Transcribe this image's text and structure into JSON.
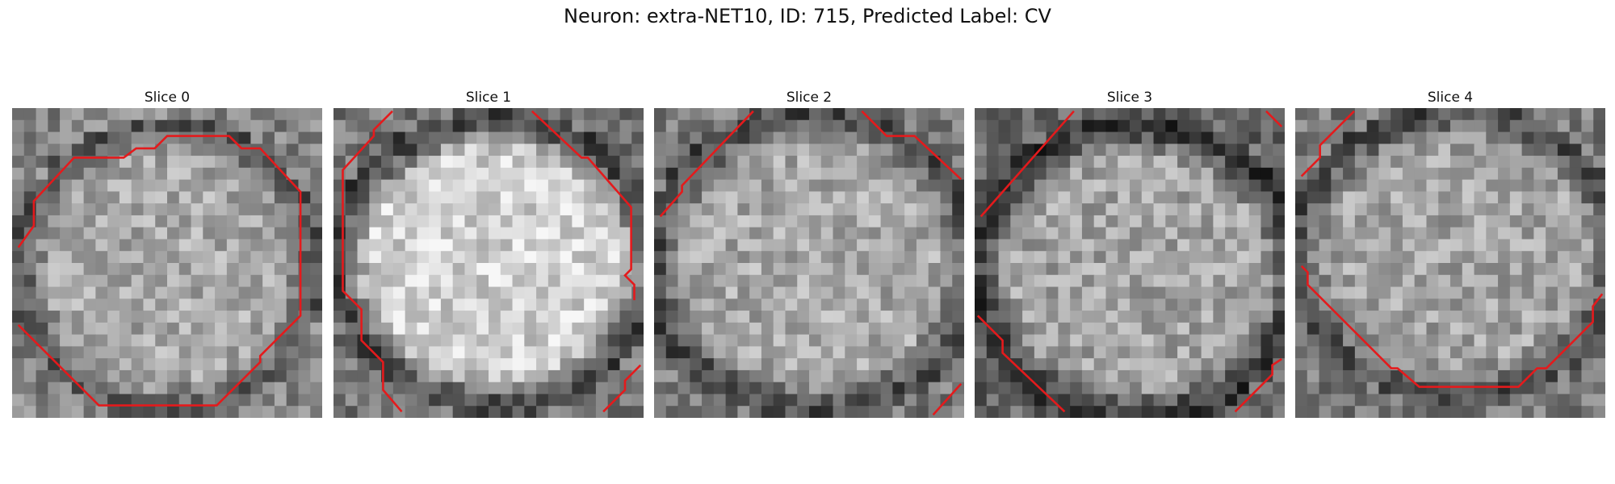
{
  "figure": {
    "title": "Neuron: extra-NET10, ID: 715, Predicted Label: CV"
  },
  "slices": [
    {
      "label": "Slice 0",
      "seed": 11,
      "center_brightness": 0.66,
      "edge_brightness": 0.34,
      "ellipse_rx": 0.46,
      "ellipse_ry": 0.44,
      "ellipse_cx": 0.5,
      "ellipse_cy": 0.52
    },
    {
      "label": "Slice 1",
      "seed": 23,
      "center_brightness": 0.82,
      "edge_brightness": 0.28,
      "ellipse_rx": 0.49,
      "ellipse_ry": 0.44,
      "ellipse_cx": 0.52,
      "ellipse_cy": 0.5
    },
    {
      "label": "Slice 2",
      "seed": 37,
      "center_brightness": 0.66,
      "edge_brightness": 0.3,
      "ellipse_rx": 0.5,
      "ellipse_ry": 0.46,
      "ellipse_cx": 0.52,
      "ellipse_cy": 0.5
    },
    {
      "label": "Slice 3",
      "seed": 41,
      "center_brightness": 0.64,
      "edge_brightness": 0.22,
      "ellipse_rx": 0.5,
      "ellipse_ry": 0.45,
      "ellipse_cx": 0.52,
      "ellipse_cy": 0.53
    },
    {
      "label": "Slice 4",
      "seed": 53,
      "center_brightness": 0.64,
      "edge_brightness": 0.3,
      "ellipse_rx": 0.5,
      "ellipse_ry": 0.44,
      "ellipse_cx": 0.52,
      "ellipse_cy": 0.47
    }
  ],
  "overlay_color": "#e41a1c",
  "contours": [
    [
      [
        [
          0.02,
          0.45
        ],
        [
          0.07,
          0.38
        ],
        [
          0.07,
          0.3
        ],
        [
          0.2,
          0.16
        ],
        [
          0.36,
          0.16
        ],
        [
          0.4,
          0.13
        ],
        [
          0.46,
          0.13
        ],
        [
          0.5,
          0.09
        ],
        [
          0.7,
          0.09
        ],
        [
          0.74,
          0.13
        ],
        [
          0.8,
          0.13
        ],
        [
          0.93,
          0.27
        ],
        [
          0.93,
          0.67
        ],
        [
          0.8,
          0.8
        ],
        [
          0.8,
          0.82
        ],
        [
          0.66,
          0.96
        ],
        [
          0.28,
          0.96
        ],
        [
          0.02,
          0.7
        ]
      ]
    ],
    [
      [
        [
          0.19,
          0.01
        ],
        [
          0.13,
          0.07
        ],
        [
          0.13,
          0.09
        ],
        [
          0.03,
          0.2
        ],
        [
          0.03,
          0.59
        ],
        [
          0.09,
          0.65
        ],
        [
          0.09,
          0.75
        ],
        [
          0.16,
          0.82
        ],
        [
          0.16,
          0.91
        ],
        [
          0.22,
          0.98
        ]
      ],
      [
        [
          0.64,
          0.01
        ],
        [
          0.8,
          0.16
        ],
        [
          0.82,
          0.16
        ],
        [
          0.96,
          0.32
        ],
        [
          0.96,
          0.52
        ],
        [
          0.94,
          0.54
        ],
        [
          0.97,
          0.57
        ],
        [
          0.97,
          0.62
        ]
      ],
      [
        [
          0.87,
          0.98
        ],
        [
          0.94,
          0.91
        ],
        [
          0.94,
          0.88
        ],
        [
          0.99,
          0.83
        ]
      ]
    ],
    [
      [
        [
          0.02,
          0.35
        ],
        [
          0.09,
          0.27
        ],
        [
          0.09,
          0.25
        ],
        [
          0.32,
          0.01
        ]
      ],
      [
        [
          0.67,
          0.01
        ],
        [
          0.75,
          0.09
        ],
        [
          0.84,
          0.09
        ],
        [
          0.99,
          0.23
        ]
      ],
      [
        [
          0.9,
          0.99
        ],
        [
          0.99,
          0.89
        ]
      ]
    ],
    [
      [
        [
          0.02,
          0.35
        ],
        [
          0.32,
          0.01
        ]
      ],
      [
        [
          0.94,
          0.01
        ],
        [
          0.99,
          0.06
        ]
      ],
      [
        [
          0.01,
          0.67
        ],
        [
          0.09,
          0.75
        ],
        [
          0.09,
          0.79
        ],
        [
          0.29,
          0.98
        ]
      ],
      [
        [
          0.84,
          0.98
        ],
        [
          0.96,
          0.86
        ],
        [
          0.96,
          0.83
        ],
        [
          0.99,
          0.81
        ]
      ]
    ],
    [
      [
        [
          0.02,
          0.22
        ],
        [
          0.08,
          0.16
        ],
        [
          0.08,
          0.12
        ],
        [
          0.19,
          0.01
        ]
      ],
      [
        [
          0.02,
          0.51
        ],
        [
          0.04,
          0.53
        ],
        [
          0.04,
          0.57
        ],
        [
          0.31,
          0.84
        ],
        [
          0.33,
          0.84
        ],
        [
          0.4,
          0.9
        ],
        [
          0.72,
          0.9
        ],
        [
          0.78,
          0.84
        ],
        [
          0.81,
          0.84
        ],
        [
          0.96,
          0.69
        ],
        [
          0.96,
          0.64
        ],
        [
          0.99,
          0.6
        ]
      ]
    ]
  ]
}
